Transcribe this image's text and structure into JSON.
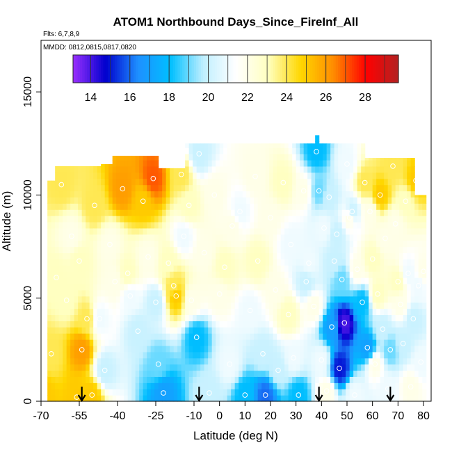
{
  "chart_data": {
    "type": "heatmap",
    "title": "ATOM1 Northbound Days_Since_FireInf_All",
    "flights_note": "Flts: 6,7,8,9",
    "dates_note": "MMDD: 0812,0815,0817,0820",
    "xlabel": "Latitude (deg N)",
    "ylabel": "Altitude (m)",
    "xlim": [
      -70,
      83
    ],
    "ylim": [
      0,
      17500
    ],
    "x_ticks": [
      -70,
      -55,
      -40,
      -25,
      -10,
      0,
      10,
      20,
      30,
      40,
      50,
      60,
      70,
      80
    ],
    "x_tick_labels": [
      "-70",
      "-55",
      "-40",
      "-25",
      "-10",
      "0",
      "10",
      "20",
      "30",
      "40",
      "50",
      "60",
      "70",
      "80"
    ],
    "y_ticks": [
      0,
      5000,
      10000,
      15000
    ],
    "y_tick_labels": [
      "0",
      "5000",
      "10000",
      "15000"
    ],
    "colorbar": {
      "range": [
        13.1,
        29.7
      ],
      "ticks": [
        14,
        16,
        18,
        20,
        22,
        24,
        26,
        28
      ],
      "tick_labels": [
        "14",
        "16",
        "18",
        "20",
        "22",
        "24",
        "26",
        "28"
      ],
      "colors": [
        "#9b30ff",
        "#0000cd",
        "#1e90ff",
        "#00bfff",
        "#bfefff",
        "#ffffff",
        "#ffffbf",
        "#ffd700",
        "#ff8c00",
        "#ff0000",
        "#b22222"
      ]
    },
    "descent_arrows_lat": [
      -54,
      -8,
      39,
      67
    ],
    "sample_points": [
      [
        -69,
        300,
        25
      ],
      [
        -66,
        2300,
        24
      ],
      [
        -64,
        6000,
        23
      ],
      [
        -62,
        10500,
        24
      ],
      [
        -60,
        4900,
        23
      ],
      [
        -58,
        8000,
        22
      ],
      [
        -56,
        200,
        25
      ],
      [
        -55,
        6800,
        23
      ],
      [
        -54,
        2500,
        26
      ],
      [
        -52,
        4000,
        24
      ],
      [
        -50,
        300,
        25
      ],
      [
        -49,
        9500,
        24
      ],
      [
        -47,
        4000,
        21
      ],
      [
        -45,
        1500,
        20
      ],
      [
        -43,
        7600,
        22
      ],
      [
        -41,
        5800,
        22
      ],
      [
        -38,
        10300,
        26
      ],
      [
        -36,
        6200,
        23
      ],
      [
        -35,
        5100,
        21
      ],
      [
        -32,
        3400,
        20
      ],
      [
        -30,
        9700,
        25
      ],
      [
        -28,
        7000,
        22
      ],
      [
        -26,
        10800,
        27
      ],
      [
        -25,
        4800,
        20
      ],
      [
        -24,
        1800,
        19
      ],
      [
        -22,
        400,
        17
      ],
      [
        -20,
        6700,
        23
      ],
      [
        -18,
        5600,
        24
      ],
      [
        -17,
        5100,
        25
      ],
      [
        -15,
        11000,
        24
      ],
      [
        -14,
        8000,
        21
      ],
      [
        -12,
        9500,
        23
      ],
      [
        -11,
        4900,
        22
      ],
      [
        -9,
        3100,
        18
      ],
      [
        -8,
        12000,
        20
      ],
      [
        -6,
        7200,
        22
      ],
      [
        -4,
        400,
        20
      ],
      [
        -2,
        10000,
        22
      ],
      [
        0,
        5200,
        22
      ],
      [
        2,
        6500,
        23
      ],
      [
        4,
        1800,
        21
      ],
      [
        5,
        8500,
        22
      ],
      [
        8,
        9200,
        21
      ],
      [
        10,
        300,
        18
      ],
      [
        12,
        4400,
        21
      ],
      [
        14,
        10900,
        22
      ],
      [
        15,
        6800,
        23
      ],
      [
        17,
        2300,
        20
      ],
      [
        18,
        300,
        16
      ],
      [
        20,
        8900,
        22
      ],
      [
        22,
        5400,
        22
      ],
      [
        23,
        1500,
        20
      ],
      [
        25,
        10600,
        23
      ],
      [
        27,
        4200,
        23
      ],
      [
        28,
        7600,
        21
      ],
      [
        29,
        2100,
        21
      ],
      [
        31,
        300,
        18
      ],
      [
        33,
        10200,
        22
      ],
      [
        34,
        5800,
        20
      ],
      [
        35,
        6700,
        21
      ],
      [
        37,
        4600,
        22
      ],
      [
        38,
        12100,
        18
      ],
      [
        39,
        10200,
        19
      ],
      [
        40,
        2000,
        21
      ],
      [
        41,
        8400,
        21
      ],
      [
        42,
        500,
        22
      ],
      [
        43,
        9900,
        20
      ],
      [
        44,
        3600,
        17
      ],
      [
        45,
        6800,
        20
      ],
      [
        46,
        8100,
        20
      ],
      [
        47,
        1600,
        15
      ],
      [
        48,
        5900,
        19
      ],
      [
        49,
        3800,
        14
      ],
      [
        50,
        11500,
        21
      ],
      [
        51,
        8900,
        22
      ],
      [
        52,
        9200,
        20
      ],
      [
        53,
        300,
        21
      ],
      [
        54,
        6400,
        22
      ],
      [
        56,
        4800,
        18
      ],
      [
        57,
        10600,
        24
      ],
      [
        58,
        2600,
        17
      ],
      [
        59,
        9200,
        22
      ],
      [
        60,
        6900,
        23
      ],
      [
        61,
        1800,
        22
      ],
      [
        62,
        5200,
        23
      ],
      [
        63,
        10000,
        25
      ],
      [
        64,
        3500,
        20
      ],
      [
        65,
        7900,
        22
      ],
      [
        66,
        600,
        21
      ],
      [
        67,
        2500,
        19
      ],
      [
        68,
        11400,
        24
      ],
      [
        69,
        8600,
        22
      ],
      [
        70,
        5800,
        23
      ],
      [
        71,
        4700,
        22
      ],
      [
        72,
        2800,
        20
      ],
      [
        73,
        9700,
        23
      ],
      [
        74,
        6200,
        21
      ],
      [
        75,
        700,
        22
      ],
      [
        76,
        4000,
        20
      ],
      [
        77,
        10700,
        25
      ],
      [
        78,
        5600,
        21
      ],
      [
        79,
        1900,
        21
      ],
      [
        80,
        6300,
        22
      ]
    ]
  }
}
